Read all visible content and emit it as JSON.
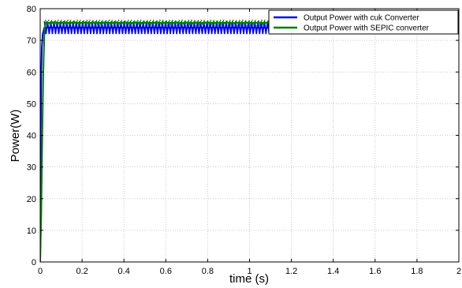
{
  "chart_data": {
    "type": "line",
    "xlabel": "time (s)",
    "ylabel": "Power(W)",
    "xlim": [
      0,
      2
    ],
    "ylim": [
      0,
      80
    ],
    "xticks": [
      0,
      0.2,
      0.4,
      0.6,
      0.8,
      1,
      1.2,
      1.4,
      1.6,
      1.8,
      2
    ],
    "xtick_labels": [
      "0",
      "0.2",
      "0.4",
      "0.6",
      "0.8",
      "1",
      "1.2",
      "1.4",
      "1.6",
      "1.8",
      "2"
    ],
    "yticks": [
      0,
      10,
      20,
      30,
      40,
      50,
      60,
      70,
      80
    ],
    "ytick_labels": [
      "0",
      "10",
      "20",
      "30",
      "40",
      "50",
      "60",
      "70",
      "80"
    ],
    "grid": true,
    "legend_position": "top-right",
    "series": [
      {
        "name": "Output Power with cuk Converter",
        "color": "#0000ff",
        "x": [
          0,
          0.002,
          0.005,
          0.008,
          0.012,
          0.02,
          2
        ],
        "y": [
          0,
          35,
          60,
          68,
          72,
          74,
          74
        ],
        "ripple": [
          72,
          76
        ]
      },
      {
        "name": "Output Power with SEPIC converter",
        "color": "#008000",
        "x": [
          0,
          0.005,
          0.01,
          0.015,
          0.02,
          0.025,
          2
        ],
        "y": [
          0,
          15,
          40,
          60,
          72,
          75.5,
          75.5
        ],
        "ripple": [
          74.5,
          76.5
        ]
      }
    ]
  }
}
